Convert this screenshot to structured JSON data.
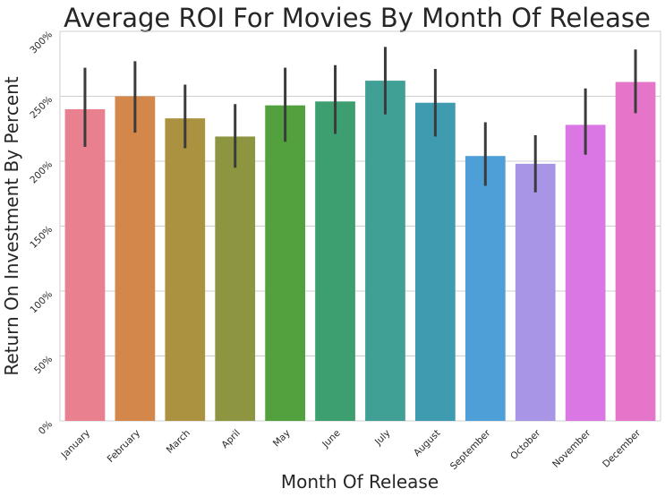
{
  "chart_data": {
    "type": "bar",
    "title": "Average ROI For Movies By Month Of Release",
    "xlabel": "Month Of Release",
    "ylabel": "Return On Investment By Percent",
    "ylim": [
      0,
      3.0
    ],
    "yticks": [
      0,
      0.5,
      1.0,
      1.5,
      2.0,
      2.5,
      3.0
    ],
    "ytick_labels": [
      "0%",
      "50%",
      "100%",
      "150%",
      "200%",
      "250%",
      "300%"
    ],
    "grid": "horizontal",
    "categories": [
      "January",
      "February",
      "March",
      "April",
      "May",
      "June",
      "July",
      "August",
      "September",
      "October",
      "November",
      "December"
    ],
    "values": [
      2.4,
      2.5,
      2.33,
      2.19,
      2.43,
      2.46,
      2.62,
      2.45,
      2.04,
      1.98,
      2.28,
      2.61
    ],
    "error_low": [
      2.11,
      2.22,
      2.1,
      1.95,
      2.15,
      2.21,
      2.36,
      2.19,
      1.81,
      1.76,
      2.05,
      2.37
    ],
    "error_high": [
      2.72,
      2.77,
      2.59,
      2.44,
      2.72,
      2.74,
      2.88,
      2.71,
      2.3,
      2.2,
      2.56,
      2.86
    ],
    "colors": [
      "#e8808f",
      "#d4874a",
      "#ab9240",
      "#8d9541",
      "#52a13e",
      "#3d9f6f",
      "#41a096",
      "#3f9cb0",
      "#4e9ed8",
      "#a895e6",
      "#da77e4",
      "#e575c8"
    ]
  }
}
